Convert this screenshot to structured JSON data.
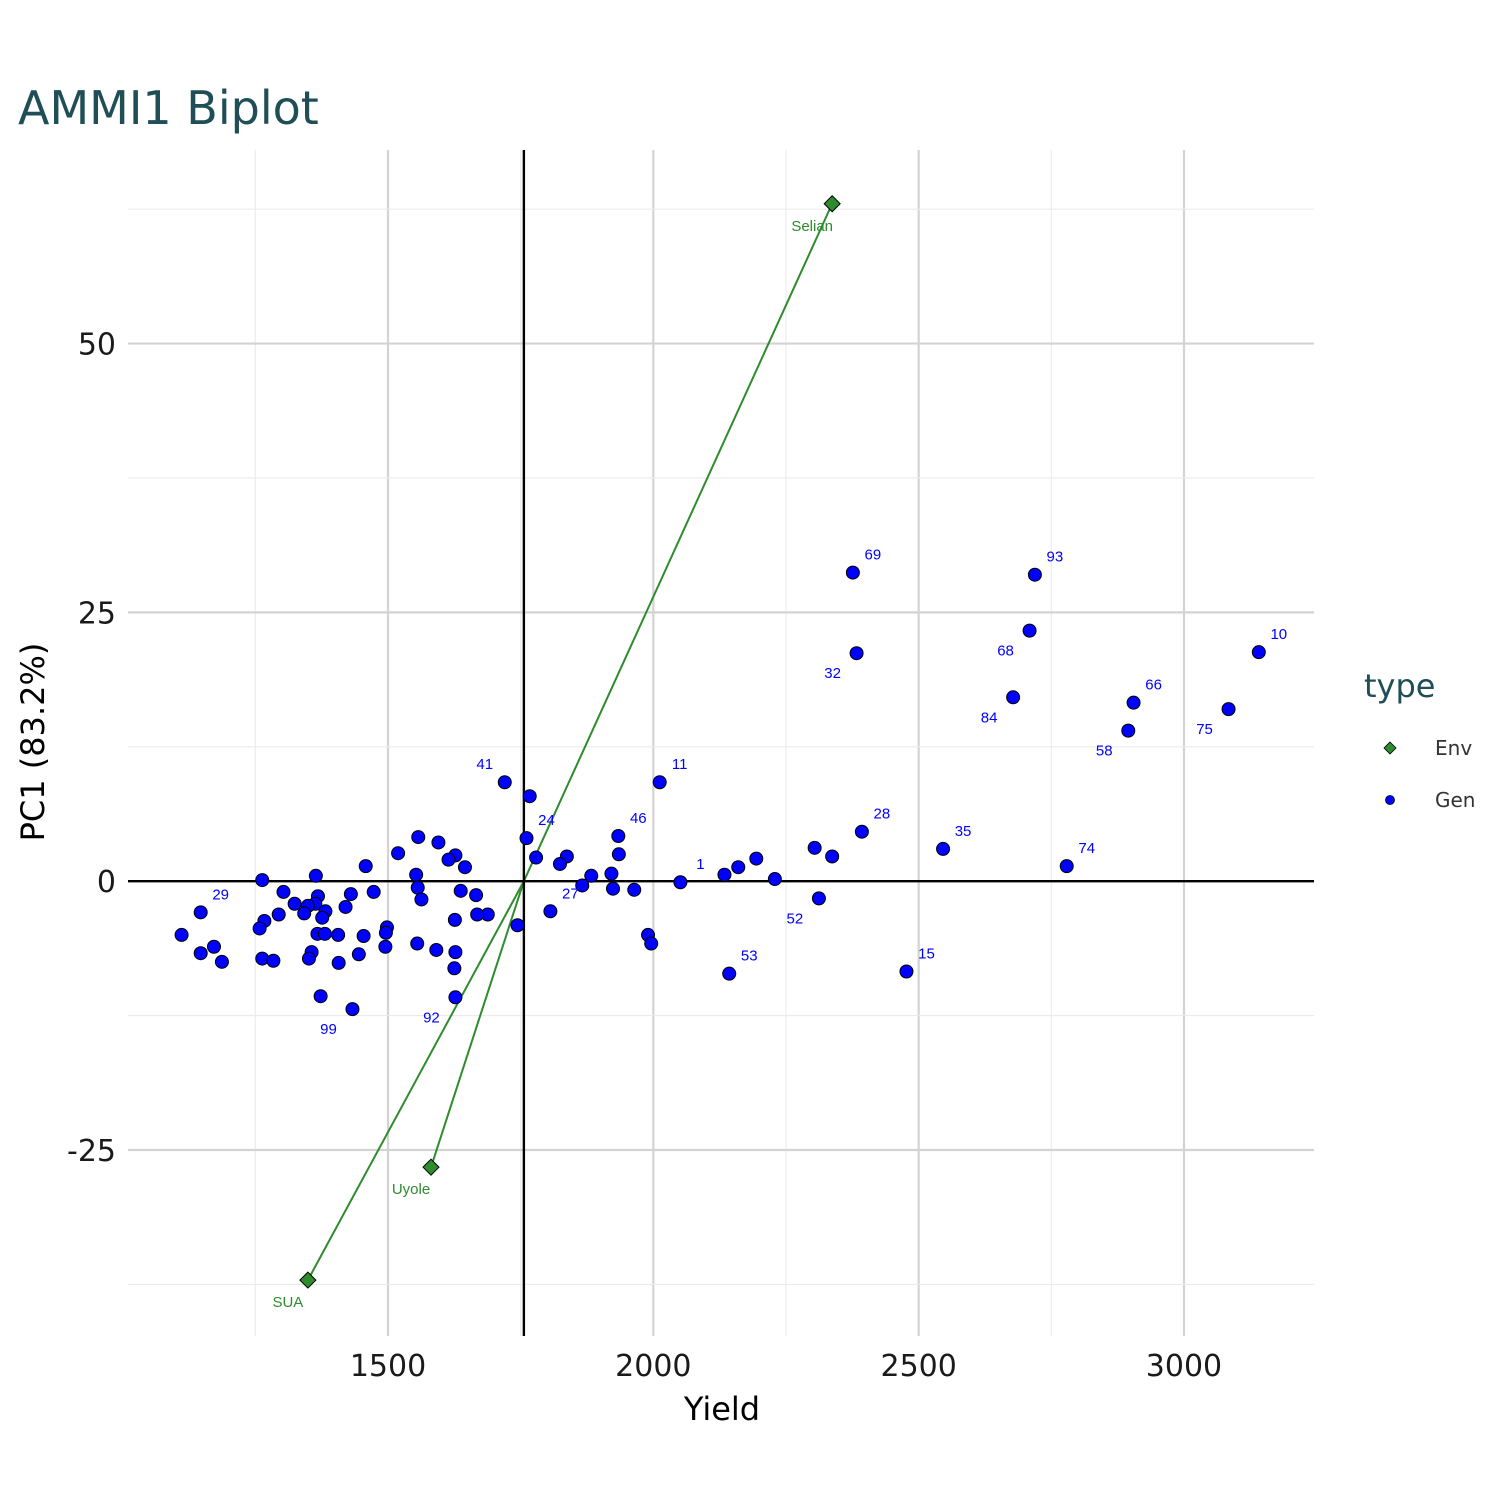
{
  "chart_data": {
    "type": "scatter",
    "title": "AMMI1 Biplot",
    "xlabel": "Yield",
    "ylabel": "PC1 (83.2%)",
    "xlim": [
      1010,
      3245
    ],
    "ylim": [
      -42.3,
      68.0
    ],
    "x_ticks": [
      1500,
      2000,
      2500,
      3000
    ],
    "y_ticks": [
      -25,
      0,
      25,
      50
    ],
    "grid": true,
    "grand_mean_yield": 1756,
    "legend": {
      "title": "type",
      "position": "right",
      "entries": [
        {
          "label": "Env",
          "color": "#2e8b2e",
          "shape": "diamond"
        },
        {
          "label": "Gen",
          "color": "#0000ff",
          "shape": "circle"
        }
      ]
    },
    "colors": {
      "title": "#1f4e57",
      "env": "#2e8b2e",
      "gen": "#0000ff",
      "axis_line": "#000000",
      "grid": "#d9d9d9"
    },
    "series": [
      {
        "name": "Env",
        "points": [
          {
            "x": 2337,
            "y": 63.0,
            "label": "Selian"
          },
          {
            "x": 1581,
            "y": -26.6,
            "label": "Uyole"
          },
          {
            "x": 1349,
            "y": -37.1,
            "label": "SUA"
          }
        ]
      },
      {
        "name": "Gen",
        "points": [
          {
            "x": 2376,
            "y": 28.7,
            "label": "69"
          },
          {
            "x": 2383,
            "y": 21.2,
            "label": "32"
          },
          {
            "x": 2719,
            "y": 28.5,
            "label": "93"
          },
          {
            "x": 2709,
            "y": 23.3,
            "label": "68"
          },
          {
            "x": 2678,
            "y": 17.1,
            "label": "84"
          },
          {
            "x": 2905,
            "y": 16.6,
            "label": "66"
          },
          {
            "x": 2895,
            "y": 14.0,
            "label": "58"
          },
          {
            "x": 3141,
            "y": 21.3,
            "label": "10"
          },
          {
            "x": 3084,
            "y": 16.0,
            "label": "75"
          },
          {
            "x": 2012,
            "y": 9.2,
            "label": "11"
          },
          {
            "x": 1720,
            "y": 9.2,
            "label": "41"
          },
          {
            "x": 1767,
            "y": 7.9,
            "label": ""
          },
          {
            "x": 1761,
            "y": 4.0,
            "label": "24"
          },
          {
            "x": 1934,
            "y": 4.2,
            "label": "46"
          },
          {
            "x": 2393,
            "y": 4.6,
            "label": "28"
          },
          {
            "x": 2546,
            "y": 3.0,
            "label": "35"
          },
          {
            "x": 2779,
            "y": 1.4,
            "label": "74"
          },
          {
            "x": 2051,
            "y": -0.1,
            "label": "1"
          },
          {
            "x": 2312,
            "y": -1.6,
            "label": "52"
          },
          {
            "x": 1806,
            "y": -2.8,
            "label": "27"
          },
          {
            "x": 2143,
            "y": -8.6,
            "label": "53"
          },
          {
            "x": 2477,
            "y": -8.4,
            "label": "15"
          },
          {
            "x": 1627,
            "y": -10.8,
            "label": "92"
          },
          {
            "x": 1433,
            "y": -11.9,
            "label": "99"
          },
          {
            "x": 1147,
            "y": -2.9,
            "label": "29"
          },
          {
            "x": 2304,
            "y": 3.1,
            "label": ""
          },
          {
            "x": 2337,
            "y": 2.3,
            "label": ""
          },
          {
            "x": 2194,
            "y": 2.1,
            "label": ""
          },
          {
            "x": 2160,
            "y": 1.3,
            "label": ""
          },
          {
            "x": 2134,
            "y": 0.6,
            "label": ""
          },
          {
            "x": 2229,
            "y": 0.2,
            "label": ""
          },
          {
            "x": 1935,
            "y": 2.5,
            "label": ""
          },
          {
            "x": 1921,
            "y": 0.7,
            "label": ""
          },
          {
            "x": 1924,
            "y": -0.7,
            "label": ""
          },
          {
            "x": 1964,
            "y": -0.8,
            "label": ""
          },
          {
            "x": 1883,
            "y": 0.5,
            "label": ""
          },
          {
            "x": 1866,
            "y": -0.4,
            "label": ""
          },
          {
            "x": 1837,
            "y": 2.3,
            "label": ""
          },
          {
            "x": 1824,
            "y": 1.6,
            "label": ""
          },
          {
            "x": 1779,
            "y": 2.2,
            "label": ""
          },
          {
            "x": 1990,
            "y": -5.0,
            "label": ""
          },
          {
            "x": 1996,
            "y": -5.8,
            "label": ""
          },
          {
            "x": 1744,
            "y": -4.1,
            "label": ""
          },
          {
            "x": 1688,
            "y": -3.1,
            "label": ""
          },
          {
            "x": 1668,
            "y": -3.1,
            "label": ""
          },
          {
            "x": 1666,
            "y": -1.3,
            "label": ""
          },
          {
            "x": 1637,
            "y": -0.9,
            "label": ""
          },
          {
            "x": 1645,
            "y": 1.3,
            "label": ""
          },
          {
            "x": 1627,
            "y": 2.4,
            "label": ""
          },
          {
            "x": 1614,
            "y": 2.0,
            "label": ""
          },
          {
            "x": 1595,
            "y": 3.6,
            "label": ""
          },
          {
            "x": 1557,
            "y": 4.1,
            "label": ""
          },
          {
            "x": 1553,
            "y": 0.6,
            "label": ""
          },
          {
            "x": 1556,
            "y": -0.6,
            "label": ""
          },
          {
            "x": 1563,
            "y": -1.7,
            "label": ""
          },
          {
            "x": 1519,
            "y": 2.6,
            "label": ""
          },
          {
            "x": 1626,
            "y": -3.6,
            "label": ""
          },
          {
            "x": 1627,
            "y": -6.6,
            "label": ""
          },
          {
            "x": 1625,
            "y": -8.1,
            "label": ""
          },
          {
            "x": 1591,
            "y": -6.4,
            "label": ""
          },
          {
            "x": 1555,
            "y": -5.8,
            "label": ""
          },
          {
            "x": 1498,
            "y": -4.3,
            "label": ""
          },
          {
            "x": 1496,
            "y": -4.8,
            "label": ""
          },
          {
            "x": 1495,
            "y": -6.1,
            "label": ""
          },
          {
            "x": 1458,
            "y": 1.4,
            "label": ""
          },
          {
            "x": 1473,
            "y": -1.0,
            "label": ""
          },
          {
            "x": 1430,
            "y": -1.2,
            "label": ""
          },
          {
            "x": 1420,
            "y": -2.4,
            "label": ""
          },
          {
            "x": 1454,
            "y": -5.1,
            "label": ""
          },
          {
            "x": 1445,
            "y": -6.8,
            "label": ""
          },
          {
            "x": 1406,
            "y": -5.0,
            "label": ""
          },
          {
            "x": 1407,
            "y": -7.6,
            "label": ""
          },
          {
            "x": 1373,
            "y": -10.7,
            "label": ""
          },
          {
            "x": 1364,
            "y": 0.5,
            "label": ""
          },
          {
            "x": 1368,
            "y": -1.4,
            "label": ""
          },
          {
            "x": 1363,
            "y": -2.1,
            "label": ""
          },
          {
            "x": 1382,
            "y": -2.8,
            "label": ""
          },
          {
            "x": 1376,
            "y": -3.4,
            "label": ""
          },
          {
            "x": 1367,
            "y": -4.9,
            "label": ""
          },
          {
            "x": 1381,
            "y": -4.9,
            "label": ""
          },
          {
            "x": 1356,
            "y": -6.6,
            "label": ""
          },
          {
            "x": 1351,
            "y": -7.2,
            "label": ""
          },
          {
            "x": 1349,
            "y": -2.3,
            "label": ""
          },
          {
            "x": 1342,
            "y": -3.0,
            "label": ""
          },
          {
            "x": 1324,
            "y": -2.1,
            "label": ""
          },
          {
            "x": 1303,
            "y": -1.0,
            "label": ""
          },
          {
            "x": 1263,
            "y": 0.1,
            "label": ""
          },
          {
            "x": 1294,
            "y": -3.1,
            "label": ""
          },
          {
            "x": 1267,
            "y": -3.7,
            "label": ""
          },
          {
            "x": 1258,
            "y": -4.4,
            "label": ""
          },
          {
            "x": 1263,
            "y": -7.2,
            "label": ""
          },
          {
            "x": 1284,
            "y": -7.4,
            "label": ""
          },
          {
            "x": 1111,
            "y": -5.0,
            "label": ""
          },
          {
            "x": 1147,
            "y": -6.7,
            "label": ""
          },
          {
            "x": 1172,
            "y": -6.1,
            "label": ""
          },
          {
            "x": 1187,
            "y": -7.5,
            "label": ""
          }
        ]
      }
    ]
  }
}
